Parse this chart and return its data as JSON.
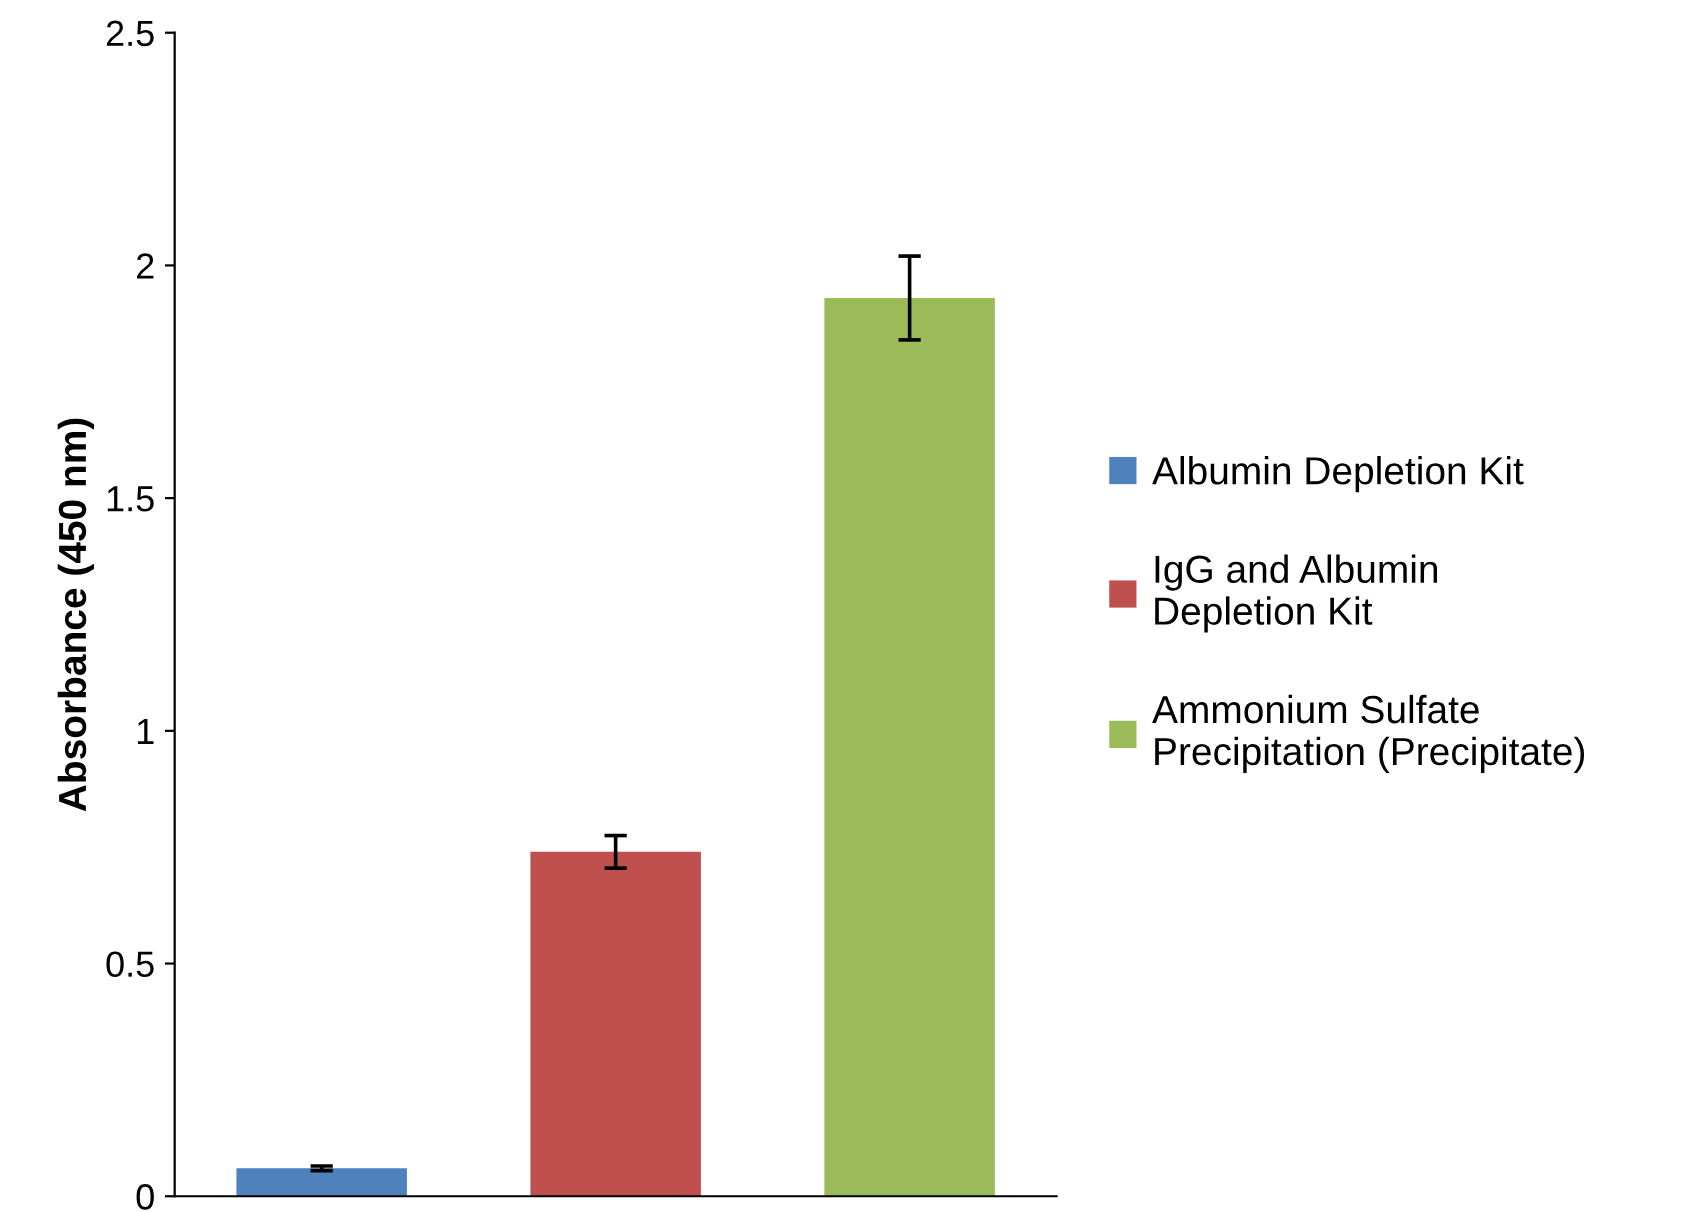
{
  "chart_data": {
    "type": "bar",
    "ylabel": "Absorbance (450 nm)",
    "categories": [
      null,
      null,
      null
    ],
    "series": [
      {
        "name": "Albumin Depletion Kit",
        "color": "#4f81bd",
        "values": [
          0.06,
          null,
          null
        ],
        "errors": [
          0.005,
          null,
          null
        ]
      },
      {
        "name": "IgG and Albumin\nDepletion Kit",
        "color": "#c0504d",
        "values": [
          null,
          0.74,
          null
        ],
        "errors": [
          null,
          0.035,
          null
        ]
      },
      {
        "name": "Ammonium Sulfate\nPrecipitation (Precipitate)",
        "color": "#9bbb59",
        "values": [
          null,
          null,
          1.93
        ],
        "errors": [
          null,
          null,
          0.09
        ]
      }
    ],
    "ylim": [
      0,
      2.5
    ],
    "yticks": [
      0,
      0.5,
      1,
      1.5,
      2,
      2.5
    ],
    "grid": false,
    "legend": "right"
  }
}
